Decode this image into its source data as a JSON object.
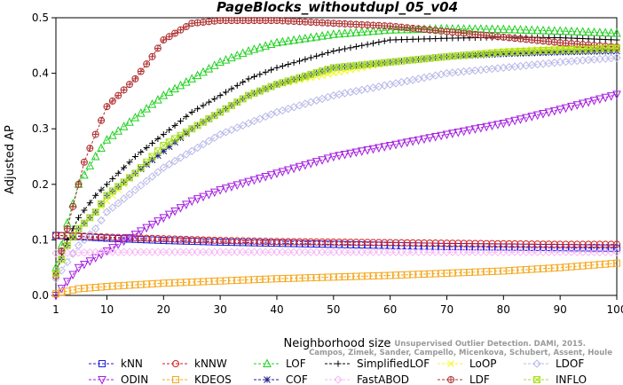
{
  "chart_data": {
    "type": "line",
    "title": "PageBlocks_withoutdupl_05_v04",
    "xlabel": "Neighborhood size",
    "ylabel": "Adjusted AP",
    "xlim": [
      1,
      100
    ],
    "ylim": [
      0,
      0.5
    ],
    "xticks": [
      1,
      10,
      20,
      30,
      40,
      50,
      60,
      70,
      80,
      90,
      100
    ],
    "yticks": [
      0.0,
      0.1,
      0.2,
      0.3,
      0.4,
      0.5
    ],
    "ytick_labels": [
      "0.0",
      "0.1",
      "0.2",
      "0.3",
      "0.4",
      "0.5"
    ],
    "credit_lines": [
      "Campos, Zimek, Sander, Campello, Micenkova, Schubert, Assent, Houle",
      "Unsupervised Outlier Detection. DAMI, 2015."
    ],
    "legend_position": "bottom",
    "series": [
      {
        "name": "kNN",
        "color": "#1f1fd6",
        "marker": "square",
        "x": [
          1,
          5,
          10,
          20,
          30,
          40,
          50,
          60,
          70,
          80,
          90,
          100
        ],
        "y": [
          0.108,
          0.106,
          0.103,
          0.099,
          0.096,
          0.094,
          0.092,
          0.09,
          0.088,
          0.087,
          0.086,
          0.085
        ]
      },
      {
        "name": "kNNW",
        "color": "#d11f1f",
        "marker": "circle",
        "x": [
          1,
          5,
          10,
          20,
          30,
          40,
          50,
          60,
          70,
          80,
          90,
          100
        ],
        "y": [
          0.108,
          0.107,
          0.105,
          0.102,
          0.099,
          0.097,
          0.096,
          0.095,
          0.094,
          0.093,
          0.092,
          0.092
        ]
      },
      {
        "name": "LOF",
        "color": "#1fd11f",
        "marker": "triangle-up",
        "x": [
          1,
          3,
          5,
          8,
          10,
          15,
          20,
          25,
          30,
          35,
          40,
          50,
          60,
          70,
          80,
          90,
          100
        ],
        "y": [
          0.05,
          0.13,
          0.2,
          0.25,
          0.28,
          0.32,
          0.36,
          0.39,
          0.42,
          0.44,
          0.455,
          0.47,
          0.478,
          0.48,
          0.479,
          0.476,
          0.472
        ]
      },
      {
        "name": "SimplifiedLOF",
        "color": "#000000",
        "marker": "plus",
        "x": [
          1,
          3,
          5,
          8,
          10,
          15,
          20,
          25,
          30,
          35,
          40,
          50,
          60,
          70,
          80,
          90,
          100
        ],
        "y": [
          0.04,
          0.1,
          0.14,
          0.18,
          0.2,
          0.25,
          0.29,
          0.33,
          0.36,
          0.39,
          0.41,
          0.44,
          0.46,
          0.463,
          0.465,
          0.464,
          0.46
        ]
      },
      {
        "name": "LoOP",
        "color": "#f5f51f",
        "marker": "x",
        "x": [
          1,
          3,
          5,
          8,
          10,
          15,
          20,
          25,
          30,
          35,
          40,
          50,
          60,
          70,
          80,
          90,
          100
        ],
        "y": [
          0.04,
          0.09,
          0.12,
          0.15,
          0.17,
          0.22,
          0.26,
          0.3,
          0.33,
          0.36,
          0.38,
          0.4,
          0.42,
          0.43,
          0.44,
          0.445,
          0.448
        ]
      },
      {
        "name": "LDOF",
        "color": "#b8b8e8",
        "marker": "diamond",
        "x": [
          1,
          3,
          5,
          8,
          10,
          15,
          20,
          25,
          30,
          35,
          40,
          50,
          60,
          70,
          80,
          90,
          100
        ],
        "y": [
          0.03,
          0.06,
          0.09,
          0.12,
          0.15,
          0.19,
          0.23,
          0.26,
          0.29,
          0.31,
          0.33,
          0.36,
          0.38,
          0.4,
          0.41,
          0.42,
          0.428
        ]
      },
      {
        "name": "ODIN",
        "color": "#a51fe0",
        "marker": "triangle-down",
        "x": [
          1,
          5,
          10,
          15,
          20,
          25,
          30,
          40,
          50,
          60,
          70,
          80,
          90,
          100
        ],
        "y": [
          0.0,
          0.05,
          0.08,
          0.11,
          0.14,
          0.17,
          0.19,
          0.22,
          0.25,
          0.27,
          0.29,
          0.31,
          0.335,
          0.362
        ]
      },
      {
        "name": "KDEOS",
        "color": "#f5a81f",
        "marker": "square",
        "x": [
          1,
          5,
          10,
          20,
          30,
          40,
          50,
          60,
          70,
          80,
          90,
          100
        ],
        "y": [
          0.003,
          0.012,
          0.016,
          0.022,
          0.026,
          0.03,
          0.033,
          0.036,
          0.04,
          0.044,
          0.05,
          0.058
        ]
      },
      {
        "name": "COF",
        "color": "#1f1f8c",
        "marker": "star",
        "x": [
          1,
          3,
          5,
          8,
          10,
          15,
          20,
          25,
          30,
          35,
          40,
          50,
          60,
          70,
          80,
          90,
          100
        ],
        "y": [
          0.04,
          0.09,
          0.12,
          0.15,
          0.18,
          0.22,
          0.26,
          0.3,
          0.33,
          0.36,
          0.38,
          0.41,
          0.42,
          0.43,
          0.435,
          0.438,
          0.44
        ]
      },
      {
        "name": "FastABOD",
        "color": "#f5b8f5",
        "marker": "diamond",
        "x": [
          1,
          5,
          10,
          20,
          30,
          40,
          50,
          60,
          70,
          80,
          90,
          100
        ],
        "y": [
          0.076,
          0.077,
          0.078,
          0.078,
          0.078,
          0.078,
          0.078,
          0.078,
          0.078,
          0.078,
          0.078,
          0.078
        ]
      },
      {
        "name": "LDF",
        "color": "#b03030",
        "marker": "circle-plus",
        "x": [
          1,
          2,
          3,
          4,
          5,
          6,
          8,
          10,
          12,
          15,
          18,
          20,
          25,
          30,
          40,
          50,
          60,
          70,
          80,
          90,
          100
        ],
        "y": [
          0.035,
          0.08,
          0.12,
          0.16,
          0.2,
          0.24,
          0.29,
          0.34,
          0.36,
          0.39,
          0.43,
          0.46,
          0.49,
          0.495,
          0.495,
          0.49,
          0.485,
          0.475,
          0.465,
          0.455,
          0.447
        ]
      },
      {
        "name": "INFLO",
        "color": "#a8e01f",
        "marker": "x-square",
        "x": [
          1,
          3,
          5,
          8,
          10,
          15,
          20,
          25,
          30,
          35,
          40,
          50,
          60,
          70,
          80,
          90,
          100
        ],
        "y": [
          0.04,
          0.09,
          0.12,
          0.15,
          0.18,
          0.22,
          0.27,
          0.3,
          0.33,
          0.36,
          0.38,
          0.41,
          0.42,
          0.43,
          0.438,
          0.442,
          0.445
        ]
      }
    ]
  }
}
